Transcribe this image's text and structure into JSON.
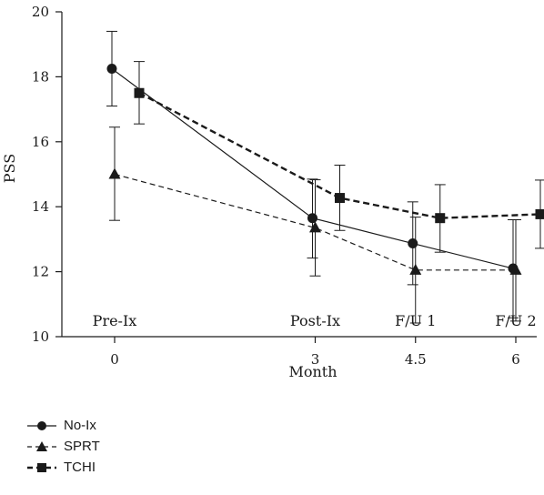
{
  "chart_data": {
    "type": "line",
    "xlabel": "Month",
    "ylabel": "PSS",
    "ylim": [
      10,
      20
    ],
    "y_ticks": [
      10,
      12,
      14,
      16,
      18,
      20
    ],
    "x_ticks": [
      0,
      3,
      4.5,
      6
    ],
    "x_tick_labels": [
      "0",
      "3",
      "4.5",
      "6"
    ],
    "grid": false,
    "legend_position": "bottom-left",
    "phase_labels": [
      {
        "x": 0,
        "text": "Pre-Ix"
      },
      {
        "x": 3,
        "text": "Post-Ix"
      },
      {
        "x": 4.5,
        "text": "F/U 1"
      },
      {
        "x": 6,
        "text": "F/U 2"
      }
    ],
    "series": [
      {
        "name": "No-Ix",
        "marker": "circle",
        "line": "solid",
        "x": [
          0,
          3,
          4.5,
          6
        ],
        "y": [
          18.25,
          13.65,
          12.87,
          12.1
        ],
        "err_low": [
          17.1,
          12.42,
          11.6,
          10.58
        ],
        "err_high": [
          19.4,
          14.85,
          14.15,
          13.6
        ]
      },
      {
        "name": "SPRT",
        "marker": "triangle",
        "line": "dashed",
        "x": [
          0,
          3,
          4.5,
          6
        ],
        "y": [
          15.0,
          13.35,
          12.05,
          12.05
        ],
        "err_low": [
          13.58,
          11.87,
          10.42,
          10.48
        ],
        "err_high": [
          16.45,
          14.83,
          13.68,
          13.6
        ]
      },
      {
        "name": "TCHI",
        "marker": "square",
        "line": "bold-dashed",
        "x": [
          0,
          3,
          4.5,
          6
        ],
        "y": [
          17.5,
          14.27,
          13.65,
          13.77
        ],
        "err_low": [
          16.55,
          13.27,
          12.6,
          12.72
        ],
        "err_high": [
          18.47,
          15.28,
          14.68,
          14.82
        ]
      }
    ]
  },
  "legend": {
    "items": [
      {
        "label": "No-Ix"
      },
      {
        "label": "SPRT"
      },
      {
        "label": "TCHI"
      }
    ]
  }
}
